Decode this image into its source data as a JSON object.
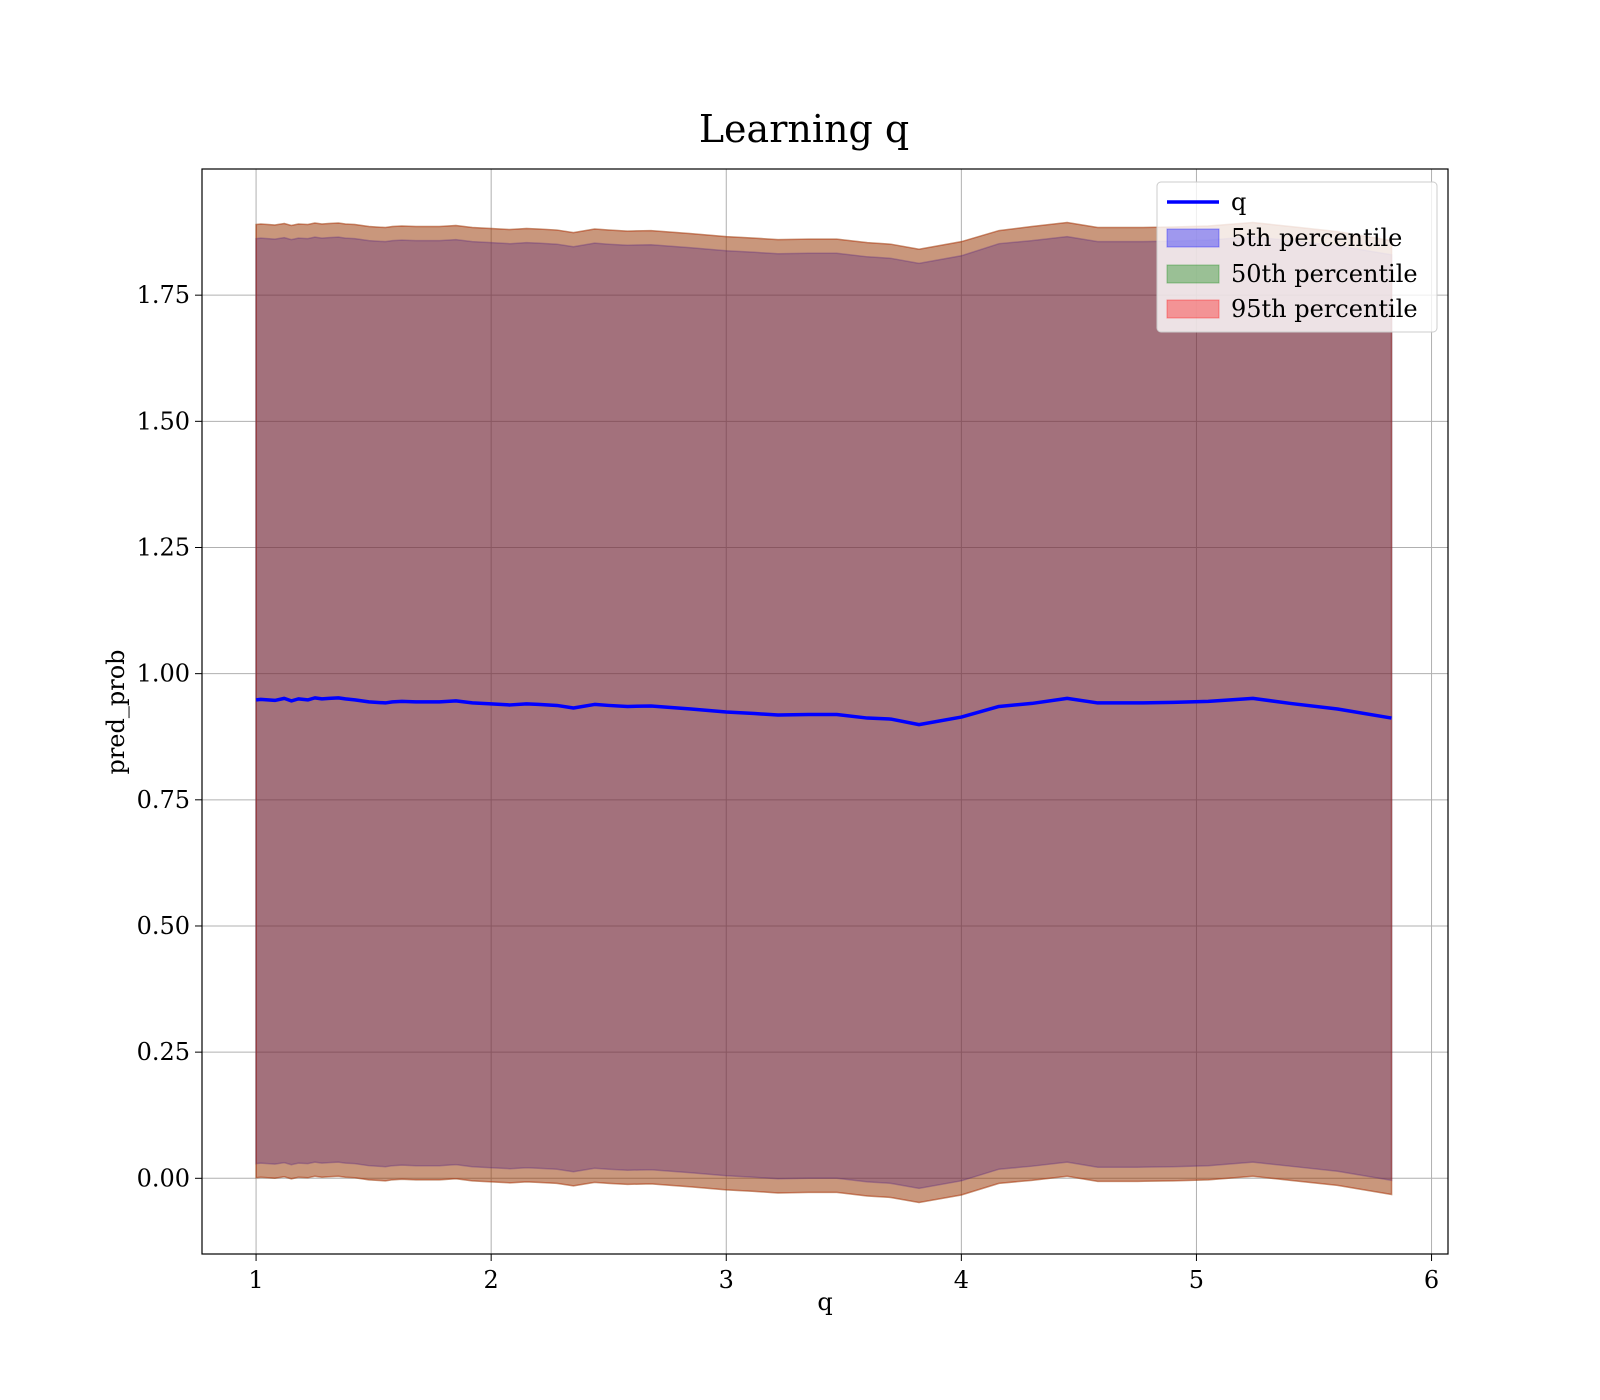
{
  "chart_data": {
    "type": "area",
    "title": "Learning q",
    "xlabel": "q",
    "ylabel": "pred_prob",
    "xlim": [
      0.77,
      6.07
    ],
    "ylim": [
      -0.15,
      2.0
    ],
    "x_ticks": [
      "1",
      "2",
      "3",
      "4",
      "5",
      "6"
    ],
    "y_ticks": [
      "0.00",
      "0.25",
      "0.50",
      "0.75",
      "1.00",
      "1.25",
      "1.50",
      "1.75"
    ],
    "grid": true,
    "legend_position": "upper right",
    "colors": {
      "q": "#0000ff",
      "p5": "#0000ff",
      "p50": "#008000",
      "p95": "#ff0000"
    },
    "x": [
      1.0,
      1.02,
      1.05,
      1.08,
      1.12,
      1.15,
      1.18,
      1.22,
      1.25,
      1.28,
      1.31,
      1.35,
      1.38,
      1.42,
      1.48,
      1.55,
      1.58,
      1.62,
      1.68,
      1.75,
      1.78,
      1.85,
      1.92,
      2.0,
      2.08,
      2.15,
      2.2,
      2.28,
      2.35,
      2.44,
      2.5,
      2.58,
      2.68,
      2.85,
      3.0,
      3.12,
      3.22,
      3.35,
      3.47,
      3.6,
      3.7,
      3.82,
      4.0,
      4.16,
      4.3,
      4.45,
      4.58,
      4.75,
      4.9,
      5.05,
      5.24,
      5.4,
      5.6,
      5.83
    ],
    "series": [
      {
        "name": "q",
        "values": [
          0.948,
          0.949,
          0.948,
          0.947,
          0.951,
          0.946,
          0.95,
          0.948,
          0.952,
          0.95,
          0.951,
          0.952,
          0.95,
          0.948,
          0.944,
          0.942,
          0.944,
          0.945,
          0.944,
          0.944,
          0.944,
          0.946,
          0.942,
          0.94,
          0.938,
          0.94,
          0.939,
          0.937,
          0.932,
          0.939,
          0.937,
          0.935,
          0.936,
          0.93,
          0.924,
          0.921,
          0.918,
          0.919,
          0.919,
          0.912,
          0.91,
          0.899,
          0.914,
          0.935,
          0.941,
          0.951,
          0.942,
          0.942,
          0.943,
          0.945,
          0.951,
          0.941,
          0.93,
          0.912
        ]
      },
      {
        "name": "5th percentile",
        "upper": [
          1.862,
          1.863,
          1.862,
          1.861,
          1.864,
          1.86,
          1.863,
          1.862,
          1.865,
          1.863,
          1.864,
          1.865,
          1.863,
          1.862,
          1.858,
          1.856,
          1.858,
          1.859,
          1.858,
          1.858,
          1.858,
          1.86,
          1.856,
          1.854,
          1.852,
          1.854,
          1.853,
          1.851,
          1.846,
          1.853,
          1.851,
          1.849,
          1.85,
          1.844,
          1.838,
          1.835,
          1.832,
          1.833,
          1.833,
          1.826,
          1.823,
          1.813,
          1.828,
          1.852,
          1.858,
          1.866,
          1.856,
          1.856,
          1.857,
          1.859,
          1.866,
          1.858,
          1.848,
          1.83
        ],
        "lower": [
          0.029,
          0.03,
          0.029,
          0.028,
          0.031,
          0.027,
          0.03,
          0.029,
          0.032,
          0.03,
          0.031,
          0.032,
          0.03,
          0.029,
          0.025,
          0.023,
          0.025,
          0.026,
          0.025,
          0.025,
          0.025,
          0.027,
          0.023,
          0.021,
          0.019,
          0.021,
          0.02,
          0.018,
          0.013,
          0.02,
          0.018,
          0.016,
          0.017,
          0.011,
          0.005,
          0.002,
          -0.001,
          0.0,
          0.0,
          -0.007,
          -0.01,
          -0.02,
          -0.005,
          0.018,
          0.024,
          0.032,
          0.022,
          0.022,
          0.023,
          0.025,
          0.032,
          0.024,
          0.014,
          -0.004
        ]
      },
      {
        "name": "50th percentile",
        "upper": [
          1.89,
          1.891,
          1.89,
          1.889,
          1.892,
          1.888,
          1.891,
          1.89,
          1.893,
          1.891,
          1.892,
          1.893,
          1.891,
          1.89,
          1.886,
          1.884,
          1.886,
          1.887,
          1.886,
          1.886,
          1.886,
          1.888,
          1.884,
          1.882,
          1.88,
          1.882,
          1.881,
          1.879,
          1.874,
          1.881,
          1.879,
          1.877,
          1.878,
          1.872,
          1.866,
          1.863,
          1.86,
          1.861,
          1.861,
          1.854,
          1.851,
          1.841,
          1.856,
          1.878,
          1.886,
          1.894,
          1.884,
          1.884,
          1.885,
          1.887,
          1.894,
          1.886,
          1.876,
          1.858
        ],
        "lower": [
          0.001,
          0.002,
          0.001,
          0.0,
          0.003,
          -0.001,
          0.002,
          0.001,
          0.004,
          0.002,
          0.003,
          0.004,
          0.002,
          0.001,
          -0.003,
          -0.005,
          -0.003,
          -0.002,
          -0.003,
          -0.003,
          -0.003,
          -0.001,
          -0.005,
          -0.007,
          -0.009,
          -0.007,
          -0.008,
          -0.01,
          -0.015,
          -0.008,
          -0.01,
          -0.012,
          -0.011,
          -0.017,
          -0.023,
          -0.026,
          -0.029,
          -0.028,
          -0.028,
          -0.035,
          -0.038,
          -0.048,
          -0.033,
          -0.01,
          -0.004,
          0.004,
          -0.006,
          -0.006,
          -0.005,
          -0.003,
          0.004,
          -0.004,
          -0.014,
          -0.032
        ]
      },
      {
        "name": "95th percentile",
        "upper": [
          1.89,
          1.891,
          1.89,
          1.889,
          1.892,
          1.888,
          1.891,
          1.89,
          1.893,
          1.891,
          1.892,
          1.893,
          1.891,
          1.89,
          1.886,
          1.884,
          1.886,
          1.887,
          1.886,
          1.886,
          1.886,
          1.888,
          1.884,
          1.882,
          1.88,
          1.882,
          1.881,
          1.879,
          1.874,
          1.881,
          1.879,
          1.877,
          1.878,
          1.872,
          1.866,
          1.863,
          1.86,
          1.861,
          1.861,
          1.854,
          1.851,
          1.841,
          1.856,
          1.878,
          1.886,
          1.894,
          1.884,
          1.884,
          1.885,
          1.887,
          1.894,
          1.886,
          1.876,
          1.858
        ],
        "lower": [
          0.001,
          0.002,
          0.001,
          0.0,
          0.003,
          -0.001,
          0.002,
          0.001,
          0.004,
          0.002,
          0.003,
          0.004,
          0.002,
          0.001,
          -0.003,
          -0.005,
          -0.003,
          -0.002,
          -0.003,
          -0.003,
          -0.003,
          -0.001,
          -0.005,
          -0.007,
          -0.009,
          -0.007,
          -0.008,
          -0.01,
          -0.015,
          -0.008,
          -0.01,
          -0.012,
          -0.011,
          -0.017,
          -0.023,
          -0.026,
          -0.029,
          -0.028,
          -0.028,
          -0.035,
          -0.038,
          -0.048,
          -0.033,
          -0.01,
          -0.004,
          0.004,
          -0.006,
          -0.006,
          -0.005,
          -0.003,
          0.004,
          -0.004,
          -0.014,
          -0.032
        ]
      }
    ],
    "legend": [
      "q",
      "5th percentile",
      "50th percentile",
      "95th percentile"
    ]
  }
}
